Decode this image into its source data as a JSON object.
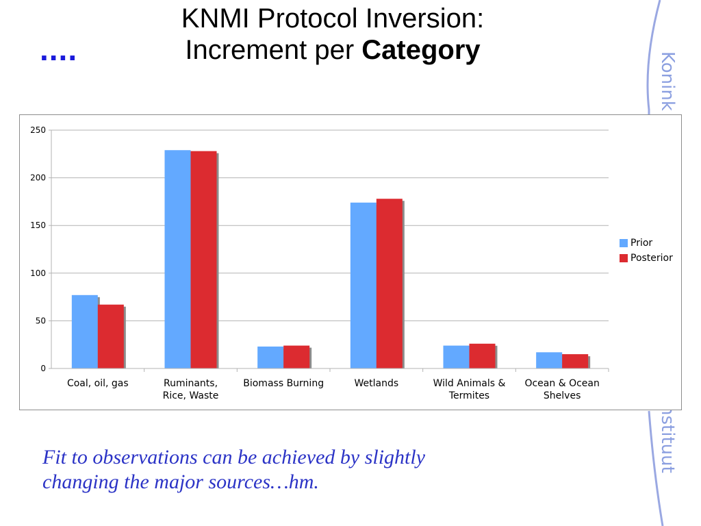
{
  "slide": {
    "ellipsis": "....",
    "title_line1": "KNMI Protocol Inversion:",
    "title_line2_pre": "Increment per ",
    "title_line2_bold": "Category",
    "side_text_top": "Konink",
    "side_text_bottom": "nstituut",
    "caption_line1": "Fit to observations can be achieved by slightly",
    "caption_line2": "changing the major sources…hm."
  },
  "colors": {
    "prior": "#63a9ff",
    "posterior": "#dc2b30",
    "caption": "#2b33c6",
    "side_decor": "#8b9fe0"
  },
  "chart_data": {
    "type": "bar",
    "categories": [
      [
        "Coal, oil, gas"
      ],
      [
        "Ruminants,",
        "Rice, Waste"
      ],
      [
        "Biomass Burning"
      ],
      [
        "Wetlands"
      ],
      [
        "Wild Animals &",
        "Termites"
      ],
      [
        "Ocean & Ocean",
        "Shelves"
      ]
    ],
    "series": [
      {
        "name": "Prior",
        "values": [
          77,
          229,
          23,
          174,
          24,
          17
        ]
      },
      {
        "name": "Posterior",
        "values": [
          67,
          228,
          24,
          178,
          26,
          15
        ]
      }
    ],
    "y_ticks": [
      "0",
      "50",
      "100",
      "150",
      "200",
      "250"
    ],
    "ylim": [
      0,
      250
    ],
    "grid": true,
    "legend_position": "right"
  }
}
